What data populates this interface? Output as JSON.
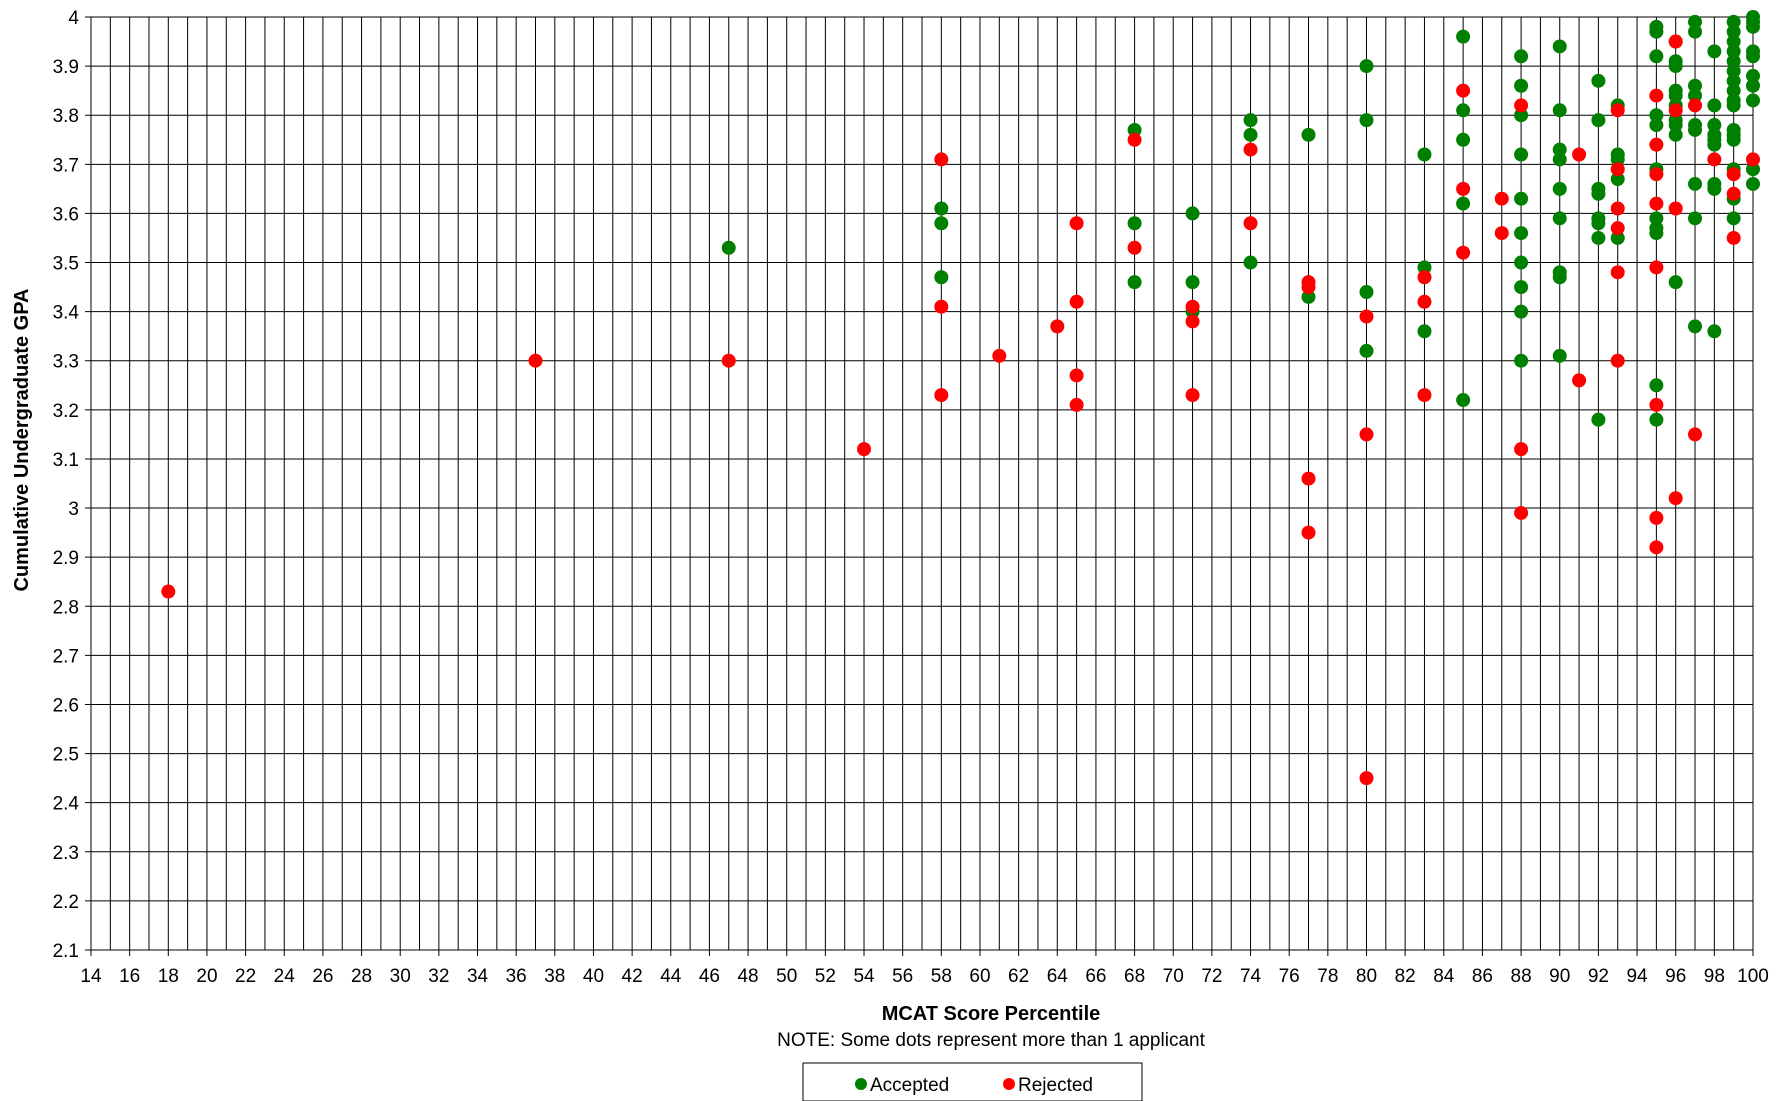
{
  "chart_data": {
    "type": "scatter",
    "xlabel": "MCAT Score Percentile",
    "ylabel": "Cumulative Undergraduate GPA",
    "note": "NOTE:  Some dots represent more than 1 applicant",
    "xlim": [
      14,
      100
    ],
    "ylim": [
      2.1,
      4.0
    ],
    "x_ticks": [
      14,
      16,
      18,
      20,
      22,
      24,
      26,
      28,
      30,
      32,
      34,
      36,
      38,
      40,
      42,
      44,
      46,
      48,
      50,
      52,
      54,
      56,
      58,
      60,
      62,
      64,
      66,
      68,
      70,
      72,
      74,
      76,
      78,
      80,
      82,
      84,
      86,
      88,
      90,
      92,
      94,
      96,
      98,
      100
    ],
    "y_ticks": [
      2.1,
      2.2,
      2.3,
      2.4,
      2.5,
      2.6,
      2.7,
      2.8,
      2.9,
      3.0,
      3.1,
      3.2,
      3.3,
      3.4,
      3.5,
      3.6,
      3.7,
      3.8,
      3.9,
      4.0
    ],
    "y_tick_labels": [
      "2.1",
      "2.2",
      "2.3",
      "2.4",
      "2.5",
      "2.6",
      "2.7",
      "2.8",
      "2.9",
      "3",
      "3.1",
      "3.2",
      "3.3",
      "3.4",
      "3.5",
      "3.6",
      "3.7",
      "3.8",
      "3.9",
      "4"
    ],
    "grid": "on",
    "legend_placement": "bottom-center",
    "series": [
      {
        "name": "Accepted",
        "color": "#008000",
        "points": [
          [
            47,
            3.53
          ],
          [
            58,
            3.61
          ],
          [
            58,
            3.58
          ],
          [
            58,
            3.47
          ],
          [
            68,
            3.77
          ],
          [
            68,
            3.58
          ],
          [
            68,
            3.46
          ],
          [
            71,
            3.6
          ],
          [
            71,
            3.46
          ],
          [
            71,
            3.4
          ],
          [
            74,
            3.79
          ],
          [
            74,
            3.76
          ],
          [
            74,
            3.5
          ],
          [
            77,
            3.76
          ],
          [
            77,
            3.43
          ],
          [
            80,
            3.9
          ],
          [
            80,
            3.79
          ],
          [
            80,
            3.44
          ],
          [
            80,
            3.32
          ],
          [
            83,
            3.72
          ],
          [
            83,
            3.49
          ],
          [
            83,
            3.36
          ],
          [
            85,
            3.96
          ],
          [
            85,
            3.81
          ],
          [
            85,
            3.75
          ],
          [
            85,
            3.62
          ],
          [
            85,
            3.22
          ],
          [
            88,
            3.92
          ],
          [
            88,
            3.86
          ],
          [
            88,
            3.8
          ],
          [
            88,
            3.72
          ],
          [
            88,
            3.63
          ],
          [
            88,
            3.56
          ],
          [
            88,
            3.5
          ],
          [
            88,
            3.45
          ],
          [
            88,
            3.4
          ],
          [
            88,
            3.3
          ],
          [
            90,
            3.94
          ],
          [
            90,
            3.81
          ],
          [
            90,
            3.73
          ],
          [
            90,
            3.71
          ],
          [
            90,
            3.65
          ],
          [
            90,
            3.59
          ],
          [
            90,
            3.48
          ],
          [
            90,
            3.47
          ],
          [
            90,
            3.31
          ],
          [
            92,
            3.87
          ],
          [
            92,
            3.79
          ],
          [
            92,
            3.65
          ],
          [
            92,
            3.64
          ],
          [
            92,
            3.59
          ],
          [
            92,
            3.58
          ],
          [
            92,
            3.55
          ],
          [
            92,
            3.18
          ],
          [
            93,
            3.82
          ],
          [
            93,
            3.72
          ],
          [
            93,
            3.71
          ],
          [
            93,
            3.67
          ],
          [
            93,
            3.55
          ],
          [
            95,
            3.98
          ],
          [
            95,
            3.97
          ],
          [
            95,
            3.92
          ],
          [
            95,
            3.8
          ],
          [
            95,
            3.78
          ],
          [
            95,
            3.69
          ],
          [
            95,
            3.59
          ],
          [
            95,
            3.57
          ],
          [
            95,
            3.56
          ],
          [
            95,
            3.25
          ],
          [
            95,
            3.18
          ],
          [
            96,
            3.95
          ],
          [
            96,
            3.91
          ],
          [
            96,
            3.9
          ],
          [
            96,
            3.85
          ],
          [
            96,
            3.84
          ],
          [
            96,
            3.82
          ],
          [
            96,
            3.79
          ],
          [
            96,
            3.78
          ],
          [
            96,
            3.76
          ],
          [
            96,
            3.46
          ],
          [
            97,
            3.99
          ],
          [
            97,
            3.97
          ],
          [
            97,
            3.86
          ],
          [
            97,
            3.84
          ],
          [
            97,
            3.78
          ],
          [
            97,
            3.77
          ],
          [
            97,
            3.66
          ],
          [
            97,
            3.59
          ],
          [
            97,
            3.37
          ],
          [
            98,
            3.93
          ],
          [
            98,
            3.82
          ],
          [
            98,
            3.78
          ],
          [
            98,
            3.76
          ],
          [
            98,
            3.75
          ],
          [
            98,
            3.74
          ],
          [
            98,
            3.66
          ],
          [
            98,
            3.65
          ],
          [
            98,
            3.36
          ],
          [
            99,
            3.99
          ],
          [
            99,
            3.97
          ],
          [
            99,
            3.95
          ],
          [
            99,
            3.93
          ],
          [
            99,
            3.91
          ],
          [
            99,
            3.89
          ],
          [
            99,
            3.87
          ],
          [
            99,
            3.85
          ],
          [
            99,
            3.83
          ],
          [
            99,
            3.82
          ],
          [
            99,
            3.77
          ],
          [
            99,
            3.76
          ],
          [
            99,
            3.75
          ],
          [
            99,
            3.69
          ],
          [
            99,
            3.63
          ],
          [
            99,
            3.59
          ],
          [
            100,
            4.0
          ],
          [
            100,
            3.99
          ],
          [
            100,
            3.98
          ],
          [
            100,
            3.93
          ],
          [
            100,
            3.92
          ],
          [
            100,
            3.88
          ],
          [
            100,
            3.86
          ],
          [
            100,
            3.83
          ],
          [
            100,
            3.69
          ],
          [
            100,
            3.66
          ]
        ]
      },
      {
        "name": "Rejected",
        "color": "#ff0000",
        "points": [
          [
            18,
            2.83
          ],
          [
            37,
            3.3
          ],
          [
            47,
            3.3
          ],
          [
            54,
            3.12
          ],
          [
            58,
            3.71
          ],
          [
            58,
            3.41
          ],
          [
            58,
            3.23
          ],
          [
            61,
            3.31
          ],
          [
            64,
            3.37
          ],
          [
            65,
            3.58
          ],
          [
            65,
            3.42
          ],
          [
            65,
            3.27
          ],
          [
            65,
            3.21
          ],
          [
            68,
            3.75
          ],
          [
            68,
            3.53
          ],
          [
            71,
            3.41
          ],
          [
            71,
            3.38
          ],
          [
            71,
            3.23
          ],
          [
            74,
            3.73
          ],
          [
            74,
            3.58
          ],
          [
            77,
            3.46
          ],
          [
            77,
            3.45
          ],
          [
            77,
            3.06
          ],
          [
            77,
            2.95
          ],
          [
            80,
            3.39
          ],
          [
            80,
            3.15
          ],
          [
            80,
            2.45
          ],
          [
            83,
            3.47
          ],
          [
            83,
            3.42
          ],
          [
            83,
            3.23
          ],
          [
            85,
            3.85
          ],
          [
            85,
            3.65
          ],
          [
            85,
            3.52
          ],
          [
            87,
            3.63
          ],
          [
            87,
            3.56
          ],
          [
            88,
            3.82
          ],
          [
            88,
            3.12
          ],
          [
            88,
            2.99
          ],
          [
            91,
            3.72
          ],
          [
            91,
            3.26
          ],
          [
            93,
            3.81
          ],
          [
            93,
            3.69
          ],
          [
            93,
            3.61
          ],
          [
            93,
            3.57
          ],
          [
            93,
            3.48
          ],
          [
            93,
            3.3
          ],
          [
            95,
            3.84
          ],
          [
            95,
            3.74
          ],
          [
            95,
            3.68
          ],
          [
            95,
            3.62
          ],
          [
            95,
            3.49
          ],
          [
            95,
            3.21
          ],
          [
            95,
            2.98
          ],
          [
            95,
            2.92
          ],
          [
            96,
            3.95
          ],
          [
            96,
            3.81
          ],
          [
            96,
            3.61
          ],
          [
            96,
            3.02
          ],
          [
            97,
            3.82
          ],
          [
            97,
            3.15
          ],
          [
            98,
            3.71
          ],
          [
            99,
            3.68
          ],
          [
            99,
            3.64
          ],
          [
            99,
            3.55
          ],
          [
            100,
            3.71
          ]
        ]
      }
    ]
  }
}
